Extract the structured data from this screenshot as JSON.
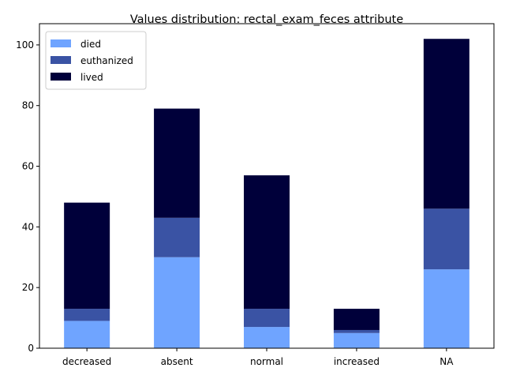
{
  "chart_data": {
    "type": "bar",
    "stacked": true,
    "title": "Values distribution: rectal_exam_feces attribute",
    "xlabel": "",
    "ylabel": "",
    "categories": [
      "decreased",
      "absent",
      "normal",
      "increased",
      "NA"
    ],
    "series": [
      {
        "name": "died",
        "color": "#6fa4ff",
        "values": [
          9,
          30,
          7,
          5,
          26
        ]
      },
      {
        "name": "euthanized",
        "color": "#3a53a4",
        "values": [
          4,
          13,
          6,
          1,
          20
        ]
      },
      {
        "name": "lived",
        "color": "#00003a",
        "values": [
          35,
          36,
          44,
          7,
          56
        ]
      }
    ],
    "ylim": [
      0,
      107
    ],
    "yticks": [
      "0",
      "20",
      "40",
      "60",
      "80",
      "100"
    ],
    "grid": false,
    "legend_position": "top-left"
  }
}
